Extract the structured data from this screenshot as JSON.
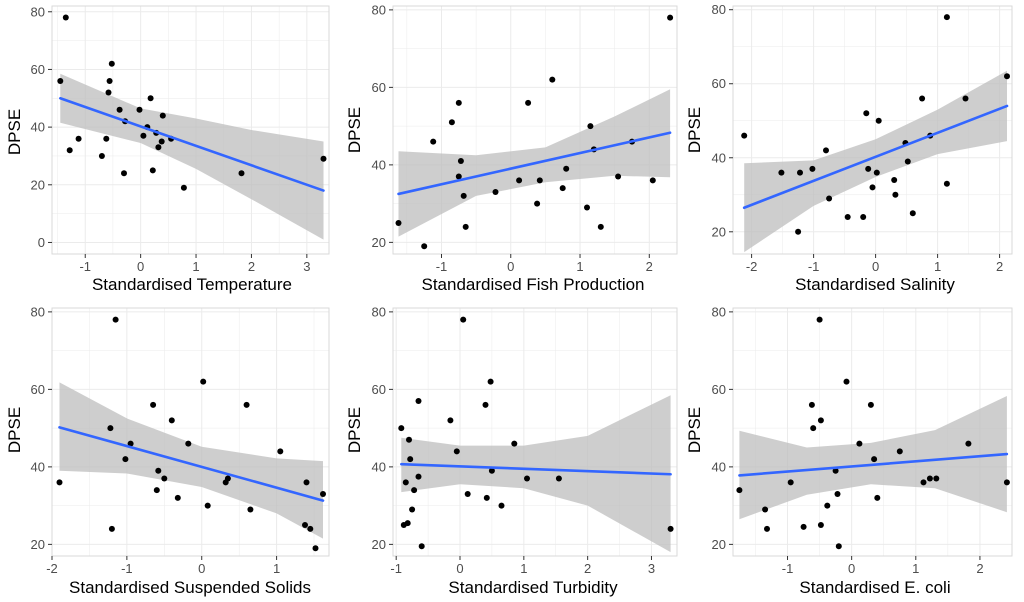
{
  "colors": {
    "background": "#ffffff",
    "grid": "#ebebeb",
    "panel_border": "#d9d9d9",
    "point": "#000000",
    "fit_line": "#3366ff",
    "confidence_band": "#bdbdbd"
  },
  "chart_data": [
    {
      "type": "scatter",
      "title": "",
      "xlabel": "Standardised Temperature",
      "ylabel": "DPSE",
      "xlim": [
        -1.6,
        3.4
      ],
      "ylim": [
        -4,
        82
      ],
      "xticks": [
        -1,
        0,
        1,
        2,
        3
      ],
      "yticks": [
        0,
        20,
        40,
        60,
        80
      ],
      "points": [
        [
          -1.45,
          56
        ],
        [
          -1.35,
          78
        ],
        [
          -1.28,
          32
        ],
        [
          -1.12,
          36
        ],
        [
          -0.7,
          30
        ],
        [
          -0.62,
          36
        ],
        [
          -0.58,
          52
        ],
        [
          -0.56,
          56
        ],
        [
          -0.52,
          62
        ],
        [
          -0.38,
          46
        ],
        [
          -0.28,
          42
        ],
        [
          -0.3,
          24
        ],
        [
          -0.02,
          46
        ],
        [
          0.05,
          37
        ],
        [
          0.12,
          40
        ],
        [
          0.18,
          50
        ],
        [
          0.22,
          25
        ],
        [
          0.28,
          38
        ],
        [
          0.32,
          33
        ],
        [
          0.38,
          35
        ],
        [
          0.4,
          44
        ],
        [
          0.55,
          36
        ],
        [
          0.78,
          19
        ],
        [
          1.82,
          24
        ],
        [
          3.3,
          29
        ]
      ],
      "fit": {
        "x": [
          -1.45,
          3.3
        ],
        "y": [
          50,
          18
        ]
      },
      "band": {
        "x": [
          -1.45,
          0.0,
          1.0,
          2.0,
          3.3
        ],
        "lower": [
          41.5,
          34.5,
          25.5,
          15,
          1
        ],
        "upper": [
          58.5,
          46.5,
          43,
          39,
          35
        ]
      }
    },
    {
      "type": "scatter",
      "title": "",
      "xlabel": "Standardised Fish Production",
      "ylabel": "DPSE",
      "xlim": [
        -1.7,
        2.4
      ],
      "ylim": [
        17,
        81
      ],
      "xticks": [
        -1,
        0,
        1,
        2
      ],
      "yticks": [
        20,
        40,
        60,
        80
      ],
      "points": [
        [
          -1.62,
          25
        ],
        [
          -1.25,
          19
        ],
        [
          -1.12,
          46
        ],
        [
          -0.85,
          51
        ],
        [
          -0.75,
          56
        ],
        [
          -0.75,
          37
        ],
        [
          -0.72,
          41
        ],
        [
          -0.68,
          32
        ],
        [
          -0.65,
          24
        ],
        [
          -0.22,
          33
        ],
        [
          0.12,
          36
        ],
        [
          0.25,
          56
        ],
        [
          0.38,
          30
        ],
        [
          0.42,
          36
        ],
        [
          0.6,
          62
        ],
        [
          0.75,
          34
        ],
        [
          0.8,
          39
        ],
        [
          1.1,
          29
        ],
        [
          1.15,
          50
        ],
        [
          1.2,
          44
        ],
        [
          1.3,
          24
        ],
        [
          1.55,
          37
        ],
        [
          1.75,
          46
        ],
        [
          2.05,
          36
        ],
        [
          2.3,
          78
        ]
      ],
      "fit": {
        "x": [
          -1.62,
          2.3
        ],
        "y": [
          32.5,
          48.3
        ]
      },
      "band": {
        "x": [
          -1.62,
          -0.5,
          0.5,
          1.5,
          2.3
        ],
        "lower": [
          21.5,
          32,
          35.5,
          37.2,
          36.8
        ],
        "upper": [
          43.5,
          42.5,
          44.5,
          52.5,
          59.5
        ]
      }
    },
    {
      "type": "scatter",
      "title": "",
      "xlabel": "Standardised Salinity",
      "ylabel": "DPSE",
      "xlim": [
        -2.3,
        2.2
      ],
      "ylim": [
        14,
        81
      ],
      "xticks": [
        -2,
        -1,
        0,
        1,
        2
      ],
      "yticks": [
        20,
        40,
        60,
        80
      ],
      "points": [
        [
          -2.12,
          46
        ],
        [
          -1.52,
          36
        ],
        [
          -1.25,
          20
        ],
        [
          -1.22,
          36
        ],
        [
          -1.02,
          37
        ],
        [
          -0.8,
          42
        ],
        [
          -0.75,
          29
        ],
        [
          -0.45,
          24
        ],
        [
          -0.2,
          24
        ],
        [
          -0.15,
          52
        ],
        [
          -0.12,
          37
        ],
        [
          -0.05,
          32
        ],
        [
          0.02,
          36
        ],
        [
          0.05,
          50
        ],
        [
          0.3,
          34
        ],
        [
          0.32,
          30
        ],
        [
          0.48,
          44
        ],
        [
          0.52,
          39
        ],
        [
          0.6,
          25
        ],
        [
          0.75,
          56
        ],
        [
          0.88,
          46
        ],
        [
          1.15,
          78
        ],
        [
          1.15,
          33
        ],
        [
          1.45,
          56
        ],
        [
          2.12,
          62
        ]
      ],
      "fit": {
        "x": [
          -2.12,
          2.12
        ],
        "y": [
          26.5,
          54
        ]
      },
      "band": {
        "x": [
          -2.12,
          -1.0,
          0.0,
          1.0,
          2.12
        ],
        "lower": [
          14.5,
          27,
          34.8,
          41,
          44.5
        ],
        "upper": [
          38.5,
          39.3,
          45,
          53,
          63.5
        ]
      }
    },
    {
      "type": "scatter",
      "title": "",
      "xlabel": "Standardised Suspended Solids",
      "ylabel": "DPSE",
      "xlim": [
        -2.0,
        1.7
      ],
      "ylim": [
        17,
        81
      ],
      "xticks": [
        -2,
        -1,
        0,
        1
      ],
      "yticks": [
        20,
        40,
        60,
        80
      ],
      "points": [
        [
          -1.9,
          36
        ],
        [
          -1.22,
          50
        ],
        [
          -1.2,
          24
        ],
        [
          -1.15,
          78
        ],
        [
          -1.02,
          42
        ],
        [
          -0.95,
          46
        ],
        [
          -0.65,
          56
        ],
        [
          -0.6,
          34
        ],
        [
          -0.58,
          39
        ],
        [
          -0.5,
          37
        ],
        [
          -0.4,
          52
        ],
        [
          -0.32,
          32
        ],
        [
          -0.18,
          46
        ],
        [
          0.02,
          62
        ],
        [
          0.08,
          30
        ],
        [
          0.32,
          36
        ],
        [
          0.35,
          37
        ],
        [
          0.6,
          56
        ],
        [
          0.65,
          29
        ],
        [
          1.05,
          44
        ],
        [
          1.38,
          25
        ],
        [
          1.4,
          36
        ],
        [
          1.45,
          24
        ],
        [
          1.52,
          19
        ],
        [
          1.62,
          33
        ]
      ],
      "fit": {
        "x": [
          -1.9,
          1.62
        ],
        "y": [
          50.2,
          31.3
        ]
      },
      "band": {
        "x": [
          -1.9,
          -1.0,
          0.0,
          1.0,
          1.62
        ],
        "lower": [
          39,
          38.3,
          34.8,
          28,
          21.5
        ],
        "upper": [
          61.8,
          52.5,
          45.2,
          42.2,
          41.5
        ]
      }
    },
    {
      "type": "scatter",
      "title": "",
      "xlabel": "Standardised Turbidity",
      "ylabel": "DPSE",
      "xlim": [
        -1.05,
        3.4
      ],
      "ylim": [
        17,
        81
      ],
      "xticks": [
        -1,
        0,
        1,
        2,
        3
      ],
      "yticks": [
        20,
        40,
        60,
        80
      ],
      "points": [
        [
          -0.92,
          50
        ],
        [
          -0.88,
          25
        ],
        [
          -0.85,
          36
        ],
        [
          -0.82,
          25.5
        ],
        [
          -0.8,
          47
        ],
        [
          -0.78,
          42
        ],
        [
          -0.75,
          29
        ],
        [
          -0.72,
          34
        ],
        [
          -0.65,
          57
        ],
        [
          -0.65,
          37.5
        ],
        [
          -0.6,
          19.5
        ],
        [
          -0.15,
          52
        ],
        [
          -0.05,
          44
        ],
        [
          0.05,
          78
        ],
        [
          0.12,
          33
        ],
        [
          0.4,
          56
        ],
        [
          0.42,
          32
        ],
        [
          0.48,
          62
        ],
        [
          0.5,
          39
        ],
        [
          0.65,
          30
        ],
        [
          0.85,
          46
        ],
        [
          1.05,
          37
        ],
        [
          1.55,
          37
        ],
        [
          3.3,
          24
        ]
      ],
      "fit": {
        "x": [
          -0.92,
          3.3
        ],
        "y": [
          40.7,
          38.1
        ]
      },
      "band": {
        "x": [
          -0.92,
          0.0,
          1.0,
          2.0,
          3.3
        ],
        "lower": [
          33.5,
          35.5,
          34.5,
          30,
          18
        ],
        "upper": [
          47.5,
          45.5,
          45.5,
          48,
          58.5
        ]
      }
    },
    {
      "type": "scatter",
      "title": "",
      "xlabel": "Standardised E. coli",
      "ylabel": "DPSE",
      "xlim": [
        -1.85,
        2.5
      ],
      "ylim": [
        17,
        81
      ],
      "xticks": [
        -1,
        0,
        1,
        2
      ],
      "yticks": [
        20,
        40,
        60,
        80
      ],
      "points": [
        [
          -1.75,
          34
        ],
        [
          -1.35,
          29
        ],
        [
          -1.32,
          24
        ],
        [
          -0.95,
          36
        ],
        [
          -0.75,
          24.5
        ],
        [
          -0.62,
          56
        ],
        [
          -0.6,
          50
        ],
        [
          -0.5,
          78
        ],
        [
          -0.48,
          52
        ],
        [
          -0.48,
          25
        ],
        [
          -0.38,
          30
        ],
        [
          -0.25,
          39
        ],
        [
          -0.22,
          33
        ],
        [
          -0.2,
          19.5
        ],
        [
          -0.08,
          62
        ],
        [
          0.12,
          46
        ],
        [
          0.3,
          56
        ],
        [
          0.35,
          42
        ],
        [
          0.4,
          32
        ],
        [
          0.75,
          44
        ],
        [
          1.12,
          36
        ],
        [
          1.22,
          37
        ],
        [
          1.32,
          37
        ],
        [
          1.82,
          46
        ],
        [
          2.42,
          36
        ]
      ],
      "fit": {
        "x": [
          -1.75,
          2.42
        ],
        "y": [
          37.8,
          43.3
        ]
      },
      "band": {
        "x": [
          -1.75,
          -0.7,
          0.3,
          1.3,
          2.42
        ],
        "lower": [
          26.5,
          32.8,
          35.5,
          34.5,
          28.3
        ],
        "upper": [
          49.3,
          45,
          46.2,
          49.5,
          58.3
        ]
      }
    }
  ]
}
